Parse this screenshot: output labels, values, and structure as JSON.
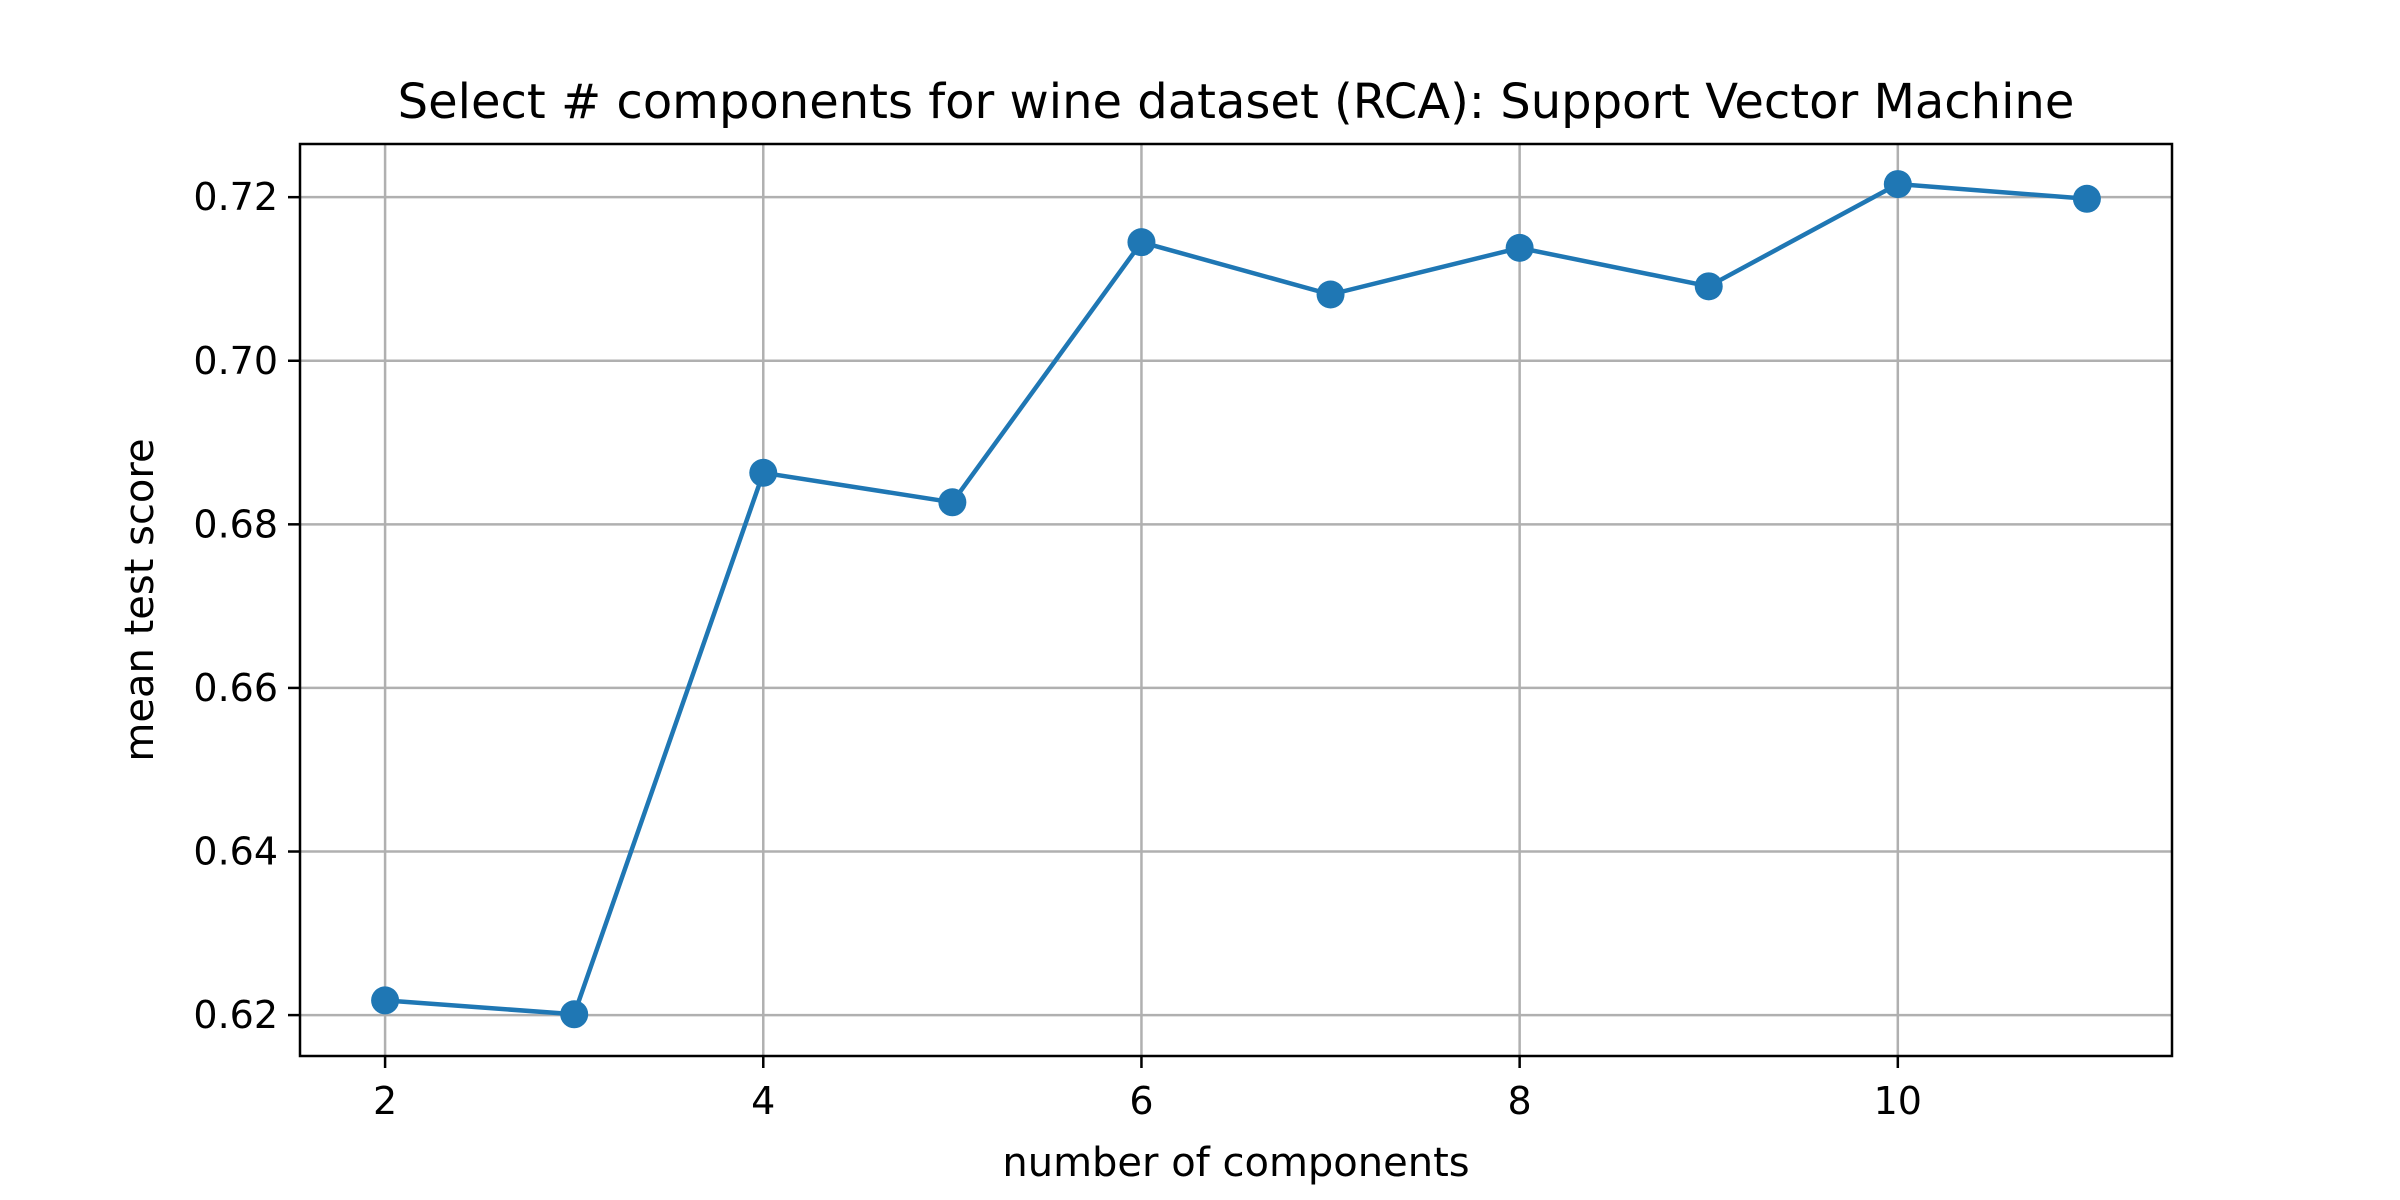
{
  "chart_data": {
    "type": "line",
    "title": "Select # components for wine dataset (RCA): Support Vector Machine",
    "xlabel": "number of components",
    "ylabel": "mean test score",
    "x": [
      2,
      3,
      4,
      5,
      6,
      7,
      8,
      9,
      10,
      11
    ],
    "series": [
      {
        "values": [
          0.6218,
          0.6201,
          0.6863,
          0.6827,
          0.7145,
          0.7081,
          0.7138,
          0.7091,
          0.7216,
          0.7198
        ]
      }
    ],
    "xlim": [
      1.55,
      11.45
    ],
    "ylim": [
      0.615,
      0.7265
    ],
    "xticks": [
      2,
      4,
      6,
      8,
      10
    ],
    "xtick_labels": [
      "2",
      "4",
      "6",
      "8",
      "10"
    ],
    "yticks": [
      0.62,
      0.64,
      0.66,
      0.68,
      0.7,
      0.72
    ],
    "ytick_labels": [
      "0.62",
      "0.64",
      "0.66",
      "0.68",
      "0.70",
      "0.72"
    ],
    "grid": true,
    "marker": "circle",
    "colors": {
      "line": "#1f77b4",
      "grid": "#b0b0b0",
      "axes": "#000000"
    }
  }
}
